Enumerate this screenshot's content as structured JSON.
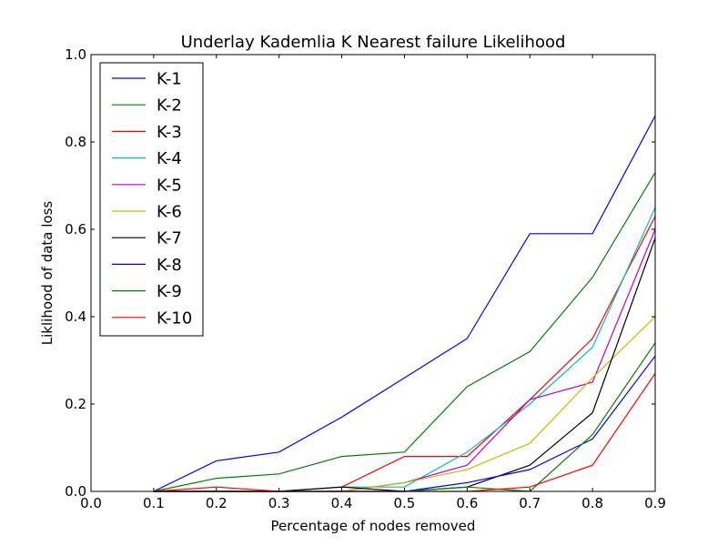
{
  "chart_data": {
    "type": "line",
    "title": "Underlay Kademlia K Nearest failure Likelihood",
    "xlabel": "Percentage of nodes removed",
    "ylabel": "Liklihood of data loss",
    "xlim": [
      0.0,
      0.9
    ],
    "ylim": [
      0.0,
      1.0
    ],
    "xticks": [
      "0.0",
      "0.1",
      "0.2",
      "0.3",
      "0.4",
      "0.5",
      "0.6",
      "0.7",
      "0.8",
      "0.9"
    ],
    "yticks": [
      "0.0",
      "0.2",
      "0.4",
      "0.6",
      "0.8",
      "1.0"
    ],
    "grid": false,
    "legend_position": "top-left",
    "x": [
      0.1,
      0.2,
      0.3,
      0.4,
      0.5,
      0.6,
      0.7,
      0.8,
      0.9
    ],
    "series": [
      {
        "name": "K-1",
        "color": "#0000ff",
        "values": [
          0.0,
          0.07,
          0.09,
          0.17,
          0.26,
          0.35,
          0.59,
          0.59,
          0.86
        ]
      },
      {
        "name": "K-2",
        "color": "#008000",
        "values": [
          0.0,
          0.03,
          0.04,
          0.08,
          0.09,
          0.24,
          0.32,
          0.49,
          0.73
        ]
      },
      {
        "name": "K-3",
        "color": "#ff0000",
        "values": [
          0.0,
          0.0,
          0.0,
          0.01,
          0.08,
          0.08,
          0.21,
          0.35,
          0.63
        ]
      },
      {
        "name": "K-4",
        "color": "#00bfbf",
        "values": [
          0.0,
          0.0,
          0.0,
          0.01,
          0.01,
          0.09,
          0.2,
          0.33,
          0.65
        ]
      },
      {
        "name": "K-5",
        "color": "#bf00bf",
        "values": [
          0.0,
          0.0,
          0.0,
          0.0,
          0.02,
          0.06,
          0.21,
          0.25,
          0.6
        ]
      },
      {
        "name": "K-6",
        "color": "#bfbf00",
        "values": [
          0.0,
          0.0,
          0.0,
          0.0,
          0.02,
          0.05,
          0.11,
          0.26,
          0.4
        ]
      },
      {
        "name": "K-7",
        "color": "#000000",
        "values": [
          0.0,
          0.0,
          0.0,
          0.01,
          0.0,
          0.01,
          0.06,
          0.18,
          0.58
        ]
      },
      {
        "name": "K-8",
        "color": "#0000ff",
        "values": [
          0.0,
          0.0,
          0.0,
          0.0,
          0.0,
          0.02,
          0.05,
          0.12,
          0.31
        ]
      },
      {
        "name": "K-9",
        "color": "#008000",
        "values": [
          0.0,
          0.0,
          0.0,
          0.0,
          0.0,
          0.01,
          0.0,
          0.13,
          0.34
        ]
      },
      {
        "name": "K-10",
        "color": "#ff0000",
        "values": [
          0.0,
          0.01,
          0.0,
          0.0,
          0.0,
          0.0,
          0.01,
          0.06,
          0.27
        ]
      }
    ]
  }
}
